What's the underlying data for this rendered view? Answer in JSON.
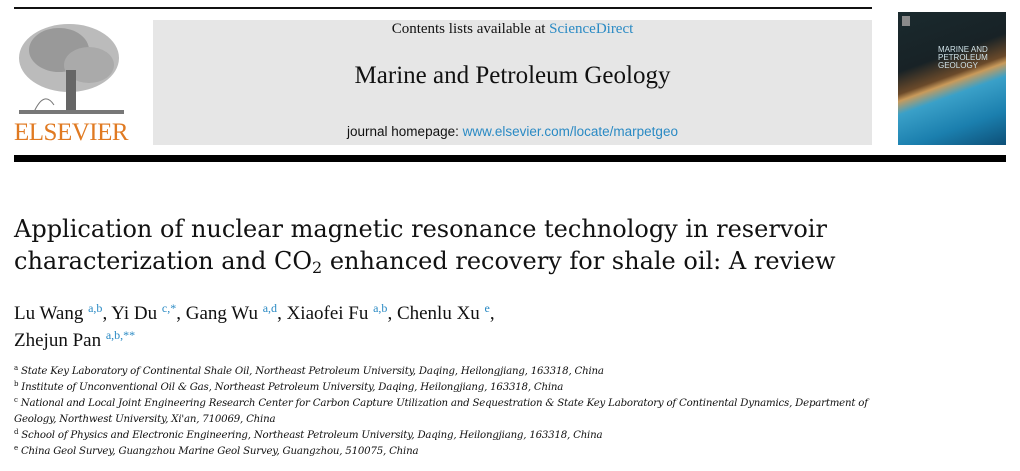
{
  "header": {
    "contents_prefix": "Contents lists available at ",
    "contents_link": "ScienceDirect",
    "journal_title": "Marine and Petroleum Geology",
    "homepage_prefix": "journal homepage: ",
    "homepage_link": "www.elsevier.com/locate/marpetgeo",
    "publisher_logo": "ELSEVIER",
    "cover_text": "MARINE AND PETROLEUM GEOLOGY"
  },
  "colors": {
    "link": "#2a8ac4",
    "elsevier_orange": "#e07a22"
  },
  "article": {
    "title_part1": "Application of nuclear magnetic resonance technology in reservoir characterization and CO",
    "title_sub": "2",
    "title_part2": " enhanced recovery for shale oil: A review",
    "authors": [
      {
        "name": "Lu Wang",
        "sup": "a,b",
        "sep": ", "
      },
      {
        "name": "Yi Du",
        "sup": "c,*",
        "sep": ", "
      },
      {
        "name": "Gang Wu",
        "sup": "a,d",
        "sep": ", "
      },
      {
        "name": "Xiaofei Fu",
        "sup": "a,b",
        "sep": ", "
      },
      {
        "name": "Chenlu Xu",
        "sup": "e",
        "sep": ","
      },
      {
        "name": "Zhejun Pan",
        "sup": "a,b,**",
        "sep": ""
      }
    ],
    "affiliations": [
      {
        "mark": "a",
        "text": "State Key Laboratory of Continental Shale Oil, Northeast Petroleum University, Daqing, Heilongjiang, 163318, China"
      },
      {
        "mark": "b",
        "text": "Institute of Unconventional Oil & Gas, Northeast Petroleum University, Daqing, Heilongjiang, 163318, China"
      },
      {
        "mark": "c",
        "text": "National and Local Joint Engineering Research Center for Carbon Capture Utilization and Sequestration & State Key Laboratory of Continental Dynamics, Department of Geology, Northwest University, Xi'an, 710069, China"
      },
      {
        "mark": "d",
        "text": "School of Physics and Electronic Engineering, Northeast Petroleum University, Daqing, Heilongjiang, 163318, China"
      },
      {
        "mark": "e",
        "text": "China Geol Survey, Guangzhou Marine Geol Survey, Guangzhou, 510075, China"
      }
    ]
  }
}
